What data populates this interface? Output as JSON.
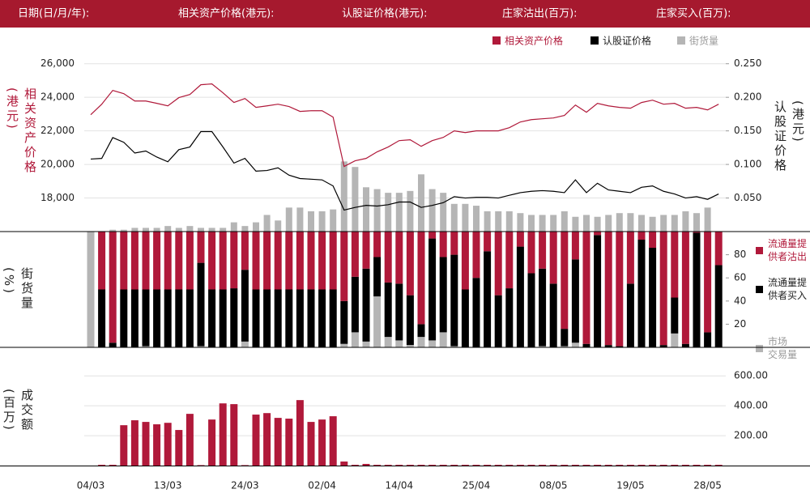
{
  "header": {
    "labels": [
      "日期(日/月/年):",
      "相关资产价格(港元):",
      "认股证价格(港元):",
      "庄家沽出(百万):",
      "庄家买入(百万):"
    ]
  },
  "chart_data": [
    {
      "type": "line",
      "ylabel": "相关资产价格(港元)",
      "y2label": "认股证价格(港元)",
      "ylim": [
        16000,
        27000
      ],
      "yticks": [
        {
          "value": 18000,
          "label": "18,000"
        },
        {
          "value": 20000,
          "label": "20,000"
        },
        {
          "value": 22000,
          "label": "22,000"
        },
        {
          "value": 24000,
          "label": "24,000"
        },
        {
          "value": 26000,
          "label": "26,000"
        }
      ],
      "y2lim": [
        0,
        0.275
      ],
      "y2ticks": [
        {
          "value": 0.05,
          "label": "0.050"
        },
        {
          "value": 0.1,
          "label": "0.100"
        },
        {
          "value": 0.15,
          "label": "0.150"
        },
        {
          "value": 0.2,
          "label": "0.200"
        },
        {
          "value": 0.25,
          "label": "0.250"
        }
      ],
      "y3lim": [
        0,
        100
      ],
      "grid": true,
      "legend": "top-right",
      "series": [
        {
          "name": "相关资产价格",
          "color": "#b0193a",
          "type": "line",
          "values": [
            22960,
            23590,
            24410,
            24220,
            23780,
            23780,
            23640,
            23490,
            23980,
            24170,
            24750,
            24800,
            24270,
            23690,
            23930,
            23400,
            23490,
            23590,
            23450,
            23160,
            23200,
            23200,
            22820,
            19880,
            20220,
            20360,
            20750,
            21040,
            21420,
            21470,
            21080,
            21420,
            21610,
            22000,
            21900,
            22000,
            22000,
            22000,
            22190,
            22530,
            22670,
            22720,
            22770,
            22920,
            23540,
            23110,
            23640,
            23490,
            23400,
            23350,
            23690,
            23830,
            23590,
            23640,
            23350,
            23400,
            23250,
            23590
          ]
        },
        {
          "name": "认股证价格",
          "color": "#000000",
          "type": "line",
          "axis": "y2",
          "values": [
            0.108,
            0.109,
            0.14,
            0.133,
            0.117,
            0.12,
            0.111,
            0.104,
            0.122,
            0.126,
            0.149,
            0.149,
            0.126,
            0.102,
            0.109,
            0.09,
            0.091,
            0.095,
            0.084,
            0.079,
            0.078,
            0.077,
            0.068,
            0.032,
            0.036,
            0.039,
            0.038,
            0.04,
            0.044,
            0.044,
            0.036,
            0.039,
            0.043,
            0.052,
            0.05,
            0.051,
            0.051,
            0.05,
            0.054,
            0.058,
            0.06,
            0.061,
            0.06,
            0.058,
            0.077,
            0.058,
            0.072,
            0.062,
            0.06,
            0.058,
            0.066,
            0.068,
            0.06,
            0.056,
            0.05,
            0.052,
            0.048,
            0.056
          ]
        },
        {
          "name": "街货量",
          "color": "#b5b5b5",
          "type": "bar",
          "axis": "y3",
          "values": [
            0,
            0,
            1,
            1,
            2,
            2,
            2,
            3,
            2,
            3,
            2,
            2,
            2,
            5,
            3,
            5,
            9,
            6,
            13,
            13,
            11,
            11,
            12,
            38,
            35,
            24,
            23,
            21,
            21,
            22,
            31,
            23,
            21,
            15,
            15,
            14,
            11,
            11,
            11,
            10,
            9,
            9,
            9,
            11,
            8,
            9,
            8,
            9,
            10,
            10,
            9,
            8,
            9,
            9,
            11,
            10,
            13,
            0
          ]
        }
      ]
    },
    {
      "type": "bar",
      "stacked": true,
      "ylabel": "街货量(%)",
      "ylim": [
        0,
        100
      ],
      "yticks": [
        20,
        40,
        60,
        80
      ],
      "legend": "right",
      "series": [
        {
          "name": "流通量提\n供者沽出",
          "color": "#b0193a",
          "values": [
            0,
            50,
            96,
            50,
            50,
            50,
            50,
            50,
            50,
            50,
            27,
            50,
            50,
            49,
            33,
            50,
            50,
            50,
            50,
            50,
            50,
            50,
            50,
            60,
            39,
            32,
            22,
            44,
            45,
            55,
            80,
            6,
            22,
            20,
            50,
            40,
            17,
            55,
            49,
            13,
            36,
            32,
            45,
            84,
            24,
            97,
            3,
            98,
            99,
            45,
            7,
            14,
            98,
            57,
            97,
            1,
            87,
            29
          ]
        },
        {
          "name": "流通量提\n供者买入",
          "color": "#000000",
          "values": [
            0,
            50,
            4,
            50,
            50,
            49,
            50,
            50,
            50,
            50,
            72,
            50,
            50,
            51,
            62,
            50,
            50,
            50,
            50,
            50,
            50,
            50,
            50,
            37,
            48,
            63,
            34,
            47,
            49,
            43,
            11,
            88,
            65,
            79,
            50,
            60,
            83,
            45,
            51,
            87,
            64,
            67,
            55,
            15,
            72,
            3,
            97,
            2,
            1,
            55,
            93,
            86,
            2,
            31,
            3,
            99,
            13,
            71
          ]
        },
        {
          "name": "市场\n交易量",
          "color": "#b5b5b5",
          "values": [
            100,
            0,
            0,
            0,
            0,
            1,
            0,
            0,
            0,
            0,
            1,
            0,
            0,
            0,
            5,
            0,
            0,
            0,
            0,
            0,
            0,
            0,
            0,
            3,
            13,
            5,
            44,
            9,
            6,
            2,
            9,
            6,
            13,
            1,
            0,
            0,
            0,
            0,
            0,
            0,
            0,
            1,
            0,
            1,
            4,
            0,
            0,
            0,
            0,
            0,
            0,
            0,
            0,
            12,
            0,
            0,
            0,
            0
          ]
        }
      ]
    },
    {
      "type": "bar",
      "ylabel": "成交额(百万)",
      "color": "#b0193a",
      "ylim": [
        0,
        650
      ],
      "grid": true,
      "yticks": [
        {
          "value": 200,
          "label": "200.00"
        },
        {
          "value": 400,
          "label": "400.00"
        },
        {
          "value": 600,
          "label": "600.00"
        }
      ],
      "categories": [
        "04/03",
        null,
        null,
        null,
        null,
        null,
        null,
        "13/03",
        null,
        null,
        null,
        null,
        null,
        null,
        "24/03",
        null,
        null,
        null,
        null,
        null,
        null,
        "02/04",
        null,
        null,
        null,
        null,
        null,
        null,
        "14/04",
        null,
        null,
        null,
        null,
        null,
        null,
        "25/04",
        null,
        null,
        null,
        null,
        null,
        null,
        "08/05",
        null,
        null,
        null,
        null,
        null,
        null,
        "19/05",
        null,
        null,
        null,
        null,
        null,
        null,
        "28/05",
        null
      ],
      "values": [
        0,
        5,
        5,
        270,
        303,
        292,
        276,
        286,
        238,
        346,
        3,
        308,
        416,
        411,
        3,
        341,
        351,
        319,
        314,
        438,
        292,
        308,
        330,
        27,
        5,
        11,
        5,
        5,
        5,
        5,
        5,
        5,
        5,
        5,
        5,
        5,
        5,
        5,
        5,
        5,
        5,
        5,
        5,
        5,
        5,
        5,
        5,
        5,
        5,
        5,
        5,
        5,
        5,
        5,
        5,
        5,
        5,
        5
      ]
    }
  ]
}
